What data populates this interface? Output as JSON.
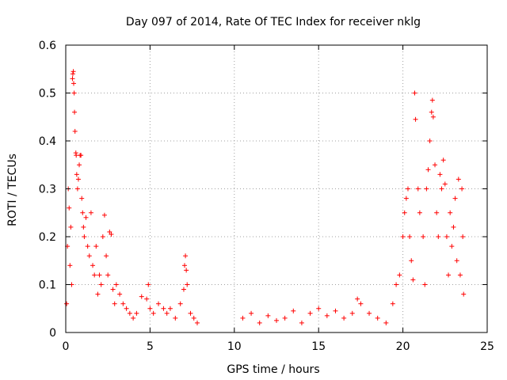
{
  "chart_data": {
    "type": "scatter",
    "title": "Day 097 of 2014, Rate Of TEC Index for receiver nklg",
    "xlabel": "GPS time / hours",
    "ylabel": "ROTI / TECUs",
    "xlim": [
      0,
      25
    ],
    "ylim": [
      0,
      0.6
    ],
    "xticks": [
      0,
      5,
      10,
      15,
      20,
      25
    ],
    "xtick_labels": [
      "0",
      "5",
      "10",
      "15",
      "20",
      "25"
    ],
    "yticks": [
      0,
      0.1,
      0.2,
      0.3,
      0.4,
      0.5,
      0.6
    ],
    "ytick_labels": [
      "0",
      "0.1",
      "0.2",
      "0.3",
      "0.4",
      "0.5",
      "0.6"
    ],
    "grid": true,
    "marker": "+",
    "color": "#ff0000",
    "data_gap": [
      7.9,
      10.4
    ],
    "series": [
      {
        "name": "ROTI",
        "points": [
          [
            0.05,
            0.06
          ],
          [
            0.1,
            0.18
          ],
          [
            0.15,
            0.3
          ],
          [
            0.2,
            0.26
          ],
          [
            0.25,
            0.14
          ],
          [
            0.3,
            0.22
          ],
          [
            0.35,
            0.1
          ],
          [
            0.4,
            0.53
          ],
          [
            0.42,
            0.54
          ],
          [
            0.45,
            0.545
          ],
          [
            0.47,
            0.52
          ],
          [
            0.5,
            0.5
          ],
          [
            0.52,
            0.46
          ],
          [
            0.55,
            0.42
          ],
          [
            0.6,
            0.375
          ],
          [
            0.62,
            0.37
          ],
          [
            0.65,
            0.33
          ],
          [
            0.7,
            0.3
          ],
          [
            0.75,
            0.32
          ],
          [
            0.8,
            0.35
          ],
          [
            0.85,
            0.37
          ],
          [
            0.9,
            0.37
          ],
          [
            0.95,
            0.28
          ],
          [
            1.0,
            0.25
          ],
          [
            1.05,
            0.22
          ],
          [
            1.1,
            0.2
          ],
          [
            1.2,
            0.24
          ],
          [
            1.3,
            0.18
          ],
          [
            1.4,
            0.16
          ],
          [
            1.5,
            0.25
          ],
          [
            1.6,
            0.14
          ],
          [
            1.7,
            0.12
          ],
          [
            1.8,
            0.18
          ],
          [
            1.9,
            0.08
          ],
          [
            2.0,
            0.12
          ],
          [
            2.1,
            0.1
          ],
          [
            2.2,
            0.2
          ],
          [
            2.3,
            0.245
          ],
          [
            2.4,
            0.16
          ],
          [
            2.5,
            0.12
          ],
          [
            2.6,
            0.21
          ],
          [
            2.7,
            0.205
          ],
          [
            2.8,
            0.09
          ],
          [
            2.9,
            0.06
          ],
          [
            3.0,
            0.1
          ],
          [
            3.2,
            0.08
          ],
          [
            3.4,
            0.06
          ],
          [
            3.6,
            0.05
          ],
          [
            3.8,
            0.04
          ],
          [
            4.0,
            0.03
          ],
          [
            4.2,
            0.04
          ],
          [
            4.5,
            0.075
          ],
          [
            4.8,
            0.07
          ],
          [
            4.9,
            0.1
          ],
          [
            5.0,
            0.05
          ],
          [
            5.2,
            0.04
          ],
          [
            5.5,
            0.06
          ],
          [
            5.8,
            0.05
          ],
          [
            6.0,
            0.04
          ],
          [
            6.2,
            0.05
          ],
          [
            6.5,
            0.03
          ],
          [
            6.8,
            0.06
          ],
          [
            7.0,
            0.09
          ],
          [
            7.05,
            0.14
          ],
          [
            7.1,
            0.16
          ],
          [
            7.15,
            0.13
          ],
          [
            7.2,
            0.1
          ],
          [
            7.4,
            0.04
          ],
          [
            7.6,
            0.03
          ],
          [
            7.8,
            0.02
          ],
          [
            10.5,
            0.03
          ],
          [
            11.0,
            0.04
          ],
          [
            11.5,
            0.02
          ],
          [
            12.0,
            0.035
          ],
          [
            12.5,
            0.025
          ],
          [
            13.0,
            0.03
          ],
          [
            13.5,
            0.045
          ],
          [
            14.0,
            0.02
          ],
          [
            14.5,
            0.04
          ],
          [
            15.0,
            0.05
          ],
          [
            15.5,
            0.035
          ],
          [
            16.0,
            0.045
          ],
          [
            16.5,
            0.03
          ],
          [
            17.0,
            0.04
          ],
          [
            17.3,
            0.07
          ],
          [
            17.5,
            0.06
          ],
          [
            18.0,
            0.04
          ],
          [
            18.5,
            0.03
          ],
          [
            19.0,
            0.02
          ],
          [
            19.4,
            0.06
          ],
          [
            19.6,
            0.1
          ],
          [
            19.8,
            0.12
          ],
          [
            20.0,
            0.2
          ],
          [
            20.1,
            0.25
          ],
          [
            20.2,
            0.28
          ],
          [
            20.3,
            0.3
          ],
          [
            20.4,
            0.2
          ],
          [
            20.5,
            0.15
          ],
          [
            20.6,
            0.11
          ],
          [
            20.7,
            0.5
          ],
          [
            20.75,
            0.445
          ],
          [
            20.9,
            0.3
          ],
          [
            21.0,
            0.25
          ],
          [
            21.2,
            0.2
          ],
          [
            21.3,
            0.1
          ],
          [
            21.4,
            0.3
          ],
          [
            21.5,
            0.34
          ],
          [
            21.6,
            0.4
          ],
          [
            21.7,
            0.46
          ],
          [
            21.75,
            0.485
          ],
          [
            21.8,
            0.45
          ],
          [
            21.9,
            0.35
          ],
          [
            22.0,
            0.25
          ],
          [
            22.1,
            0.2
          ],
          [
            22.2,
            0.33
          ],
          [
            22.3,
            0.3
          ],
          [
            22.4,
            0.36
          ],
          [
            22.5,
            0.31
          ],
          [
            22.6,
            0.2
          ],
          [
            22.7,
            0.12
          ],
          [
            22.8,
            0.25
          ],
          [
            22.9,
            0.18
          ],
          [
            23.0,
            0.22
          ],
          [
            23.1,
            0.28
          ],
          [
            23.2,
            0.15
          ],
          [
            23.3,
            0.32
          ],
          [
            23.4,
            0.12
          ],
          [
            23.5,
            0.3
          ],
          [
            23.55,
            0.2
          ],
          [
            23.6,
            0.08
          ]
        ]
      }
    ]
  }
}
